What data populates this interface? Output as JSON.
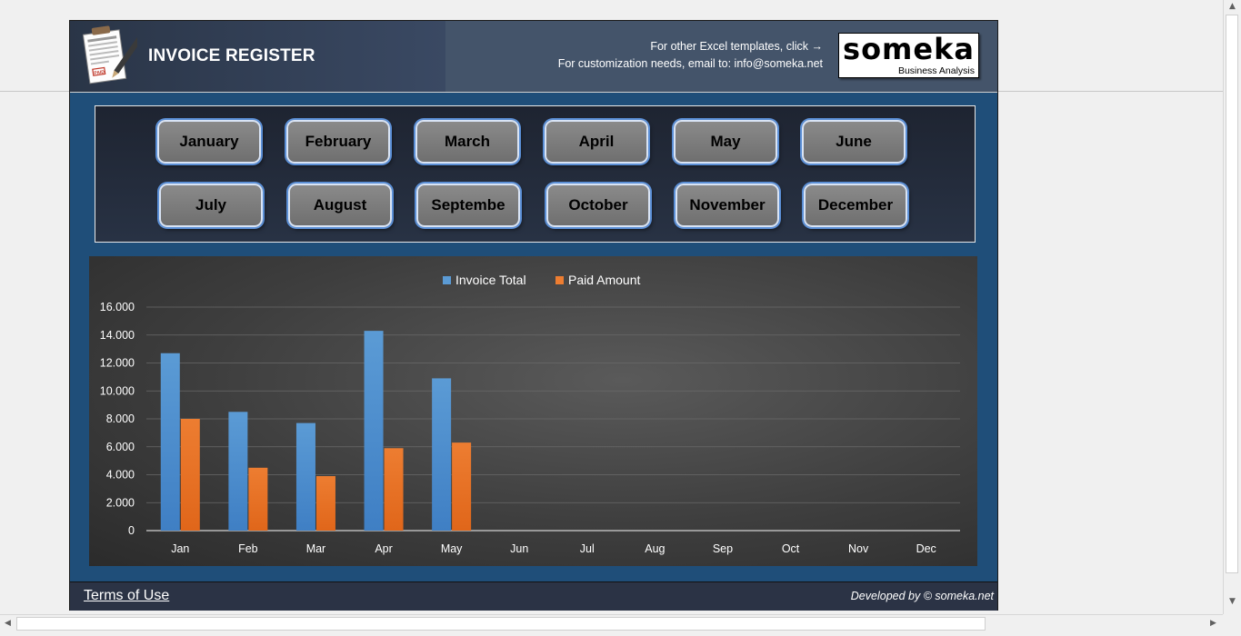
{
  "header": {
    "title": "INVOICE REGISTER",
    "templates_text": "For other Excel templates, click →",
    "contact_text": "For customization needs, email to: info@someka.net",
    "brand_name": "someka",
    "brand_tagline": "Business Analysis"
  },
  "months_row1": [
    "January",
    "February",
    "March",
    "April",
    "May",
    "June"
  ],
  "months_row2": [
    "July",
    "August",
    "Septembe",
    "October",
    "November",
    "December"
  ],
  "chart_data": {
    "type": "bar",
    "categories": [
      "Jan",
      "Feb",
      "Mar",
      "Apr",
      "May",
      "Jun",
      "Jul",
      "Aug",
      "Sep",
      "Oct",
      "Nov",
      "Dec"
    ],
    "series": [
      {
        "name": "Invoice Total",
        "color": "#5b9bd5",
        "values": [
          12700,
          8500,
          7700,
          14300,
          10900,
          0,
          0,
          0,
          0,
          0,
          0,
          0
        ]
      },
      {
        "name": "Paid Amount",
        "color": "#ed7d31",
        "values": [
          8000,
          4500,
          3900,
          5900,
          6300,
          0,
          0,
          0,
          0,
          0,
          0,
          0
        ]
      }
    ],
    "ylim": [
      0,
      16000
    ],
    "yticks": [
      "0",
      "2.000",
      "4.000",
      "6.000",
      "8.000",
      "10.000",
      "12.000",
      "14.000",
      "16.000"
    ],
    "legend_position": "top",
    "grid": true
  },
  "footer": {
    "terms": "Terms of Use",
    "developed_by": "Developed by © someka.net"
  }
}
